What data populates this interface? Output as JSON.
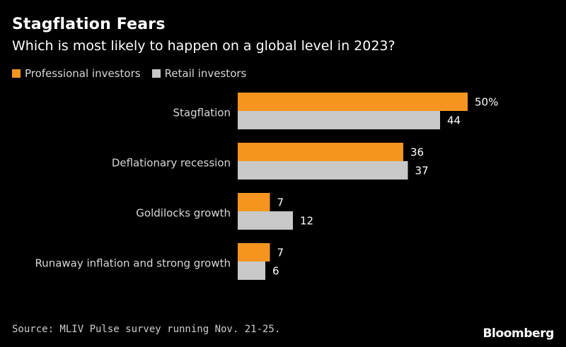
{
  "chart_data": {
    "type": "bar",
    "orientation": "horizontal",
    "title": "Stagflation Fears",
    "subtitle": "Which is most likely to happen on a global level in 2023?",
    "categories": [
      "Stagflation",
      "Deflationary recession",
      "Goldilocks growth",
      "Runaway inflation and strong growth"
    ],
    "series": [
      {
        "name": "Professional investors",
        "color": "#f5951f",
        "values": [
          50,
          36,
          7,
          7
        ],
        "labels": [
          "50%",
          "36",
          "7",
          "7"
        ]
      },
      {
        "name": "Retail investors",
        "color": "#c8c8c8",
        "values": [
          44,
          37,
          12,
          6
        ],
        "labels": [
          "44",
          "37",
          "12",
          "6"
        ]
      }
    ],
    "xlim": [
      0,
      50
    ],
    "grid": false,
    "legend_position": "top-left",
    "source": "Source: MLIV Pulse survey running Nov. 21-25.",
    "brand": "Bloomberg"
  }
}
